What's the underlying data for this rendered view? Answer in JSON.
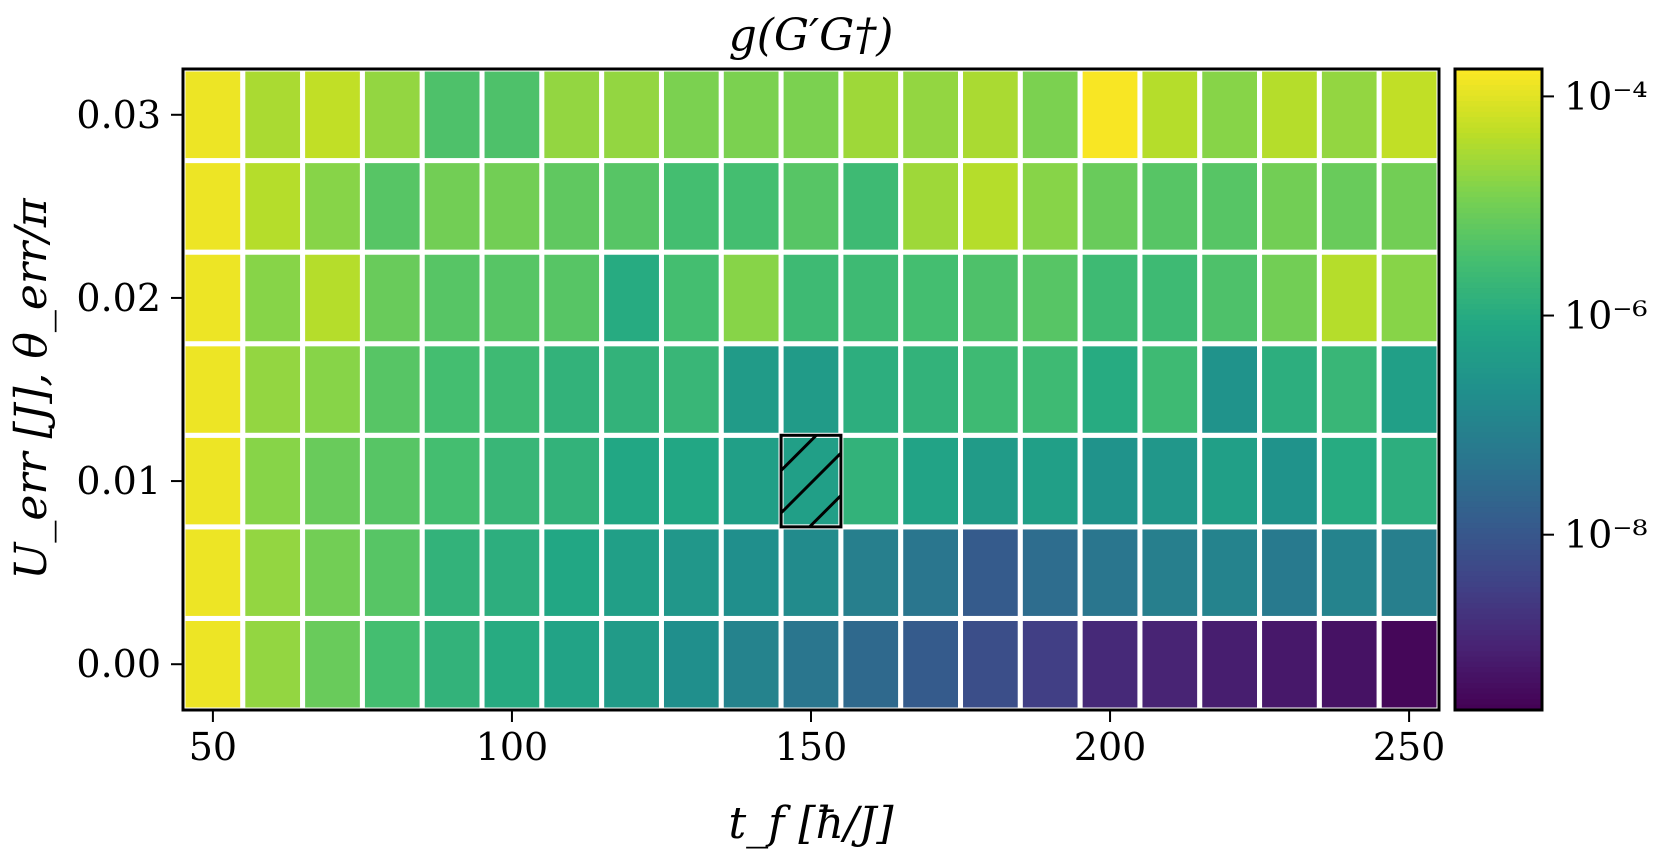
{
  "chart_data": {
    "type": "heatmap",
    "title": "g(G′G†)",
    "xlabel": "t_f [ħ/J]",
    "ylabel": "U_err [J], θ_err/π",
    "x": [
      50,
      60,
      70,
      80,
      90,
      100,
      110,
      120,
      130,
      140,
      150,
      160,
      170,
      180,
      190,
      200,
      210,
      220,
      230,
      240,
      250
    ],
    "y": [
      0.0,
      0.005,
      0.01,
      0.015,
      0.02,
      0.025,
      0.03
    ],
    "xlim": [
      45,
      255
    ],
    "ylim": [
      -0.0025,
      0.0325
    ],
    "xticks": [
      50,
      100,
      150,
      200,
      250
    ],
    "xtick_labels": [
      "50",
      "100",
      "150",
      "200",
      "250"
    ],
    "yticks": [
      0.0,
      0.01,
      0.02,
      0.03
    ],
    "ytick_labels": [
      "0.00",
      "0.01",
      "0.02",
      "0.03"
    ],
    "color_scale": "log",
    "colormap": "viridis",
    "clim_log10": [
      -9.6,
      -3.75
    ],
    "colorbar_ticks_log10": [
      -4,
      -6,
      -8
    ],
    "colorbar_tick_labels": [
      "10⁻⁴",
      "10⁻⁶",
      "10⁻⁸"
    ],
    "log10_values": [
      [
        -3.9,
        -4.7,
        -5.1,
        -5.5,
        -5.8,
        -6.0,
        -6.2,
        -6.4,
        -6.7,
        -7.0,
        -7.3,
        -7.6,
        -7.9,
        -8.2,
        -8.5,
        -8.9,
        -9.0,
        -9.1,
        -9.2,
        -9.3,
        -9.5
      ],
      [
        -3.9,
        -4.7,
        -5.0,
        -5.3,
        -5.8,
        -5.9,
        -6.1,
        -6.3,
        -6.5,
        -6.7,
        -6.8,
        -7.1,
        -7.3,
        -7.9,
        -7.5,
        -7.3,
        -7.1,
        -7.0,
        -7.2,
        -7.0,
        -7.1
      ],
      [
        -3.9,
        -4.8,
        -5.1,
        -5.3,
        -5.5,
        -5.7,
        -5.8,
        -6.1,
        -6.1,
        -6.3,
        -6.3,
        -5.8,
        -6.2,
        -6.4,
        -6.3,
        -6.6,
        -6.5,
        -6.3,
        -6.6,
        -6.0,
        -5.9
      ],
      [
        -3.9,
        -4.7,
        -4.8,
        -5.3,
        -5.5,
        -5.6,
        -5.8,
        -5.8,
        -5.7,
        -6.4,
        -6.4,
        -5.9,
        -5.8,
        -5.6,
        -5.6,
        -6.0,
        -5.6,
        -6.6,
        -5.9,
        -5.7,
        -6.3
      ],
      [
        -3.9,
        -4.8,
        -4.4,
        -5.1,
        -5.3,
        -5.3,
        -5.3,
        -6.0,
        -5.5,
        -4.8,
        -5.6,
        -5.6,
        -5.5,
        -5.4,
        -5.3,
        -5.6,
        -5.6,
        -5.4,
        -5.0,
        -4.4,
        -4.8
      ],
      [
        -3.9,
        -4.4,
        -4.8,
        -5.3,
        -5.0,
        -5.0,
        -5.2,
        -5.3,
        -5.5,
        -5.5,
        -5.3,
        -5.6,
        -4.6,
        -4.4,
        -4.8,
        -5.1,
        -5.3,
        -5.3,
        -5.0,
        -5.1,
        -5.0
      ],
      [
        -3.9,
        -4.5,
        -4.3,
        -4.7,
        -5.4,
        -5.4,
        -4.7,
        -4.7,
        -4.9,
        -4.9,
        -4.9,
        -4.6,
        -4.7,
        -4.5,
        -4.9,
        -3.8,
        -4.4,
        -4.8,
        -4.4,
        -4.7,
        -4.3
      ]
    ],
    "highlighted_cell": {
      "x": 150,
      "y": 0.01,
      "pattern": "hatched"
    },
    "grid": false
  }
}
